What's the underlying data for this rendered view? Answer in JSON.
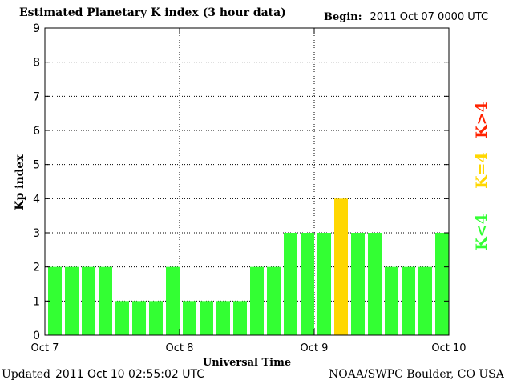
{
  "header": {
    "title": "Estimated Planetary K index (3 hour data)",
    "begin_label": "Begin:",
    "begin_value": "2011 Oct 07 0000 UTC"
  },
  "footer": {
    "updated_label": "Updated",
    "updated_value": "2011 Oct 10 02:55:02 UTC",
    "credit": "NOAA/SWPC Boulder, CO USA"
  },
  "legend": {
    "low": "K<4",
    "equal": "K=4",
    "high": "K>4"
  },
  "colors": {
    "low": "#33ff33",
    "equal": "#ffd700",
    "high": "#ff2200",
    "grid": "#000000"
  },
  "chart_data": {
    "type": "bar",
    "title": "Estimated Planetary K index (3 hour data)",
    "xlabel": "Universal Time",
    "ylabel": "Kp index",
    "ylim": [
      0,
      9
    ],
    "yticks": [
      0,
      1,
      2,
      3,
      4,
      5,
      6,
      7,
      8,
      9
    ],
    "x_start": "2011-10-07T00:00Z",
    "x_end": "2011-10-10T00:00Z",
    "xtick_labels": [
      "Oct 7",
      "Oct 8",
      "Oct 9",
      "Oct 10"
    ],
    "grid": true,
    "interval_hours": 3,
    "values": [
      2,
      2,
      2,
      2,
      1,
      1,
      1,
      2,
      1,
      1,
      1,
      1,
      2,
      2,
      3,
      3,
      3,
      4,
      3,
      3,
      2,
      2,
      2,
      3
    ]
  }
}
